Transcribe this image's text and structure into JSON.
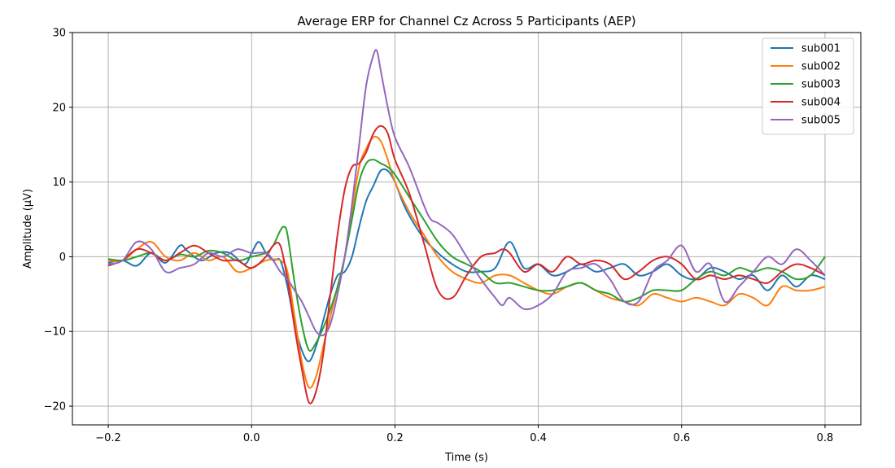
{
  "chart_data": {
    "type": "line",
    "title": "Average ERP for Channel Cz Across 5 Participants (AEP)",
    "xlabel": "Time (s)",
    "ylabel": "Amplitude (µV)",
    "xlim": [
      -0.25,
      0.85
    ],
    "ylim": [
      -22.5,
      30
    ],
    "xticks": [
      -0.2,
      0.0,
      0.2,
      0.4,
      0.6,
      0.8
    ],
    "xtick_labels": [
      "−0.2",
      "0.0",
      "0.2",
      "0.4",
      "0.6",
      "0.8"
    ],
    "yticks": [
      -20,
      -10,
      0,
      10,
      20,
      30
    ],
    "ytick_labels": [
      "−20",
      "−10",
      "0",
      "10",
      "20",
      "30"
    ],
    "grid": true,
    "legend_position": "top-right",
    "series": [
      {
        "name": "sub001",
        "color": "#1f77b4",
        "x": [
          -0.2,
          -0.18,
          -0.16,
          -0.14,
          -0.12,
          -0.1,
          -0.09,
          -0.07,
          -0.05,
          -0.03,
          -0.01,
          0.0,
          0.01,
          0.02,
          0.03,
          0.04,
          0.05,
          0.06,
          0.07,
          0.08,
          0.09,
          0.1,
          0.11,
          0.12,
          0.13,
          0.14,
          0.15,
          0.16,
          0.17,
          0.18,
          0.19,
          0.2,
          0.21,
          0.22,
          0.24,
          0.26,
          0.28,
          0.3,
          0.32,
          0.34,
          0.36,
          0.38,
          0.4,
          0.42,
          0.44,
          0.46,
          0.48,
          0.5,
          0.52,
          0.54,
          0.56,
          0.58,
          0.6,
          0.62,
          0.64,
          0.66,
          0.68,
          0.7,
          0.72,
          0.74,
          0.76,
          0.78,
          0.8
        ],
        "y": [
          -0.8,
          -0.5,
          -1.2,
          0.5,
          -0.8,
          1.5,
          0.8,
          -0.5,
          0.5,
          0.5,
          -1.0,
          0.5,
          2.0,
          0.5,
          -0.5,
          -0.5,
          -4.0,
          -9.0,
          -12.5,
          -14.0,
          -12.0,
          -8.5,
          -5.0,
          -2.5,
          -2.0,
          0.0,
          4.0,
          7.5,
          9.5,
          11.5,
          11.5,
          10.0,
          7.5,
          5.5,
          2.5,
          0.5,
          -1.0,
          -2.0,
          -2.0,
          -1.5,
          2.0,
          -1.5,
          -1.0,
          -2.5,
          -2.0,
          -1.0,
          -2.0,
          -1.5,
          -1.0,
          -2.5,
          -2.0,
          -1.0,
          -2.5,
          -3.0,
          -1.5,
          -2.0,
          -3.0,
          -2.5,
          -4.5,
          -2.5,
          -4.0,
          -2.5,
          -3.0
        ]
      },
      {
        "name": "sub002",
        "color": "#ff7f0e",
        "x": [
          -0.2,
          -0.18,
          -0.16,
          -0.14,
          -0.12,
          -0.1,
          -0.08,
          -0.06,
          -0.04,
          -0.02,
          0.0,
          0.02,
          0.04,
          0.05,
          0.06,
          0.07,
          0.08,
          0.09,
          0.1,
          0.11,
          0.12,
          0.13,
          0.14,
          0.15,
          0.16,
          0.17,
          0.18,
          0.19,
          0.2,
          0.22,
          0.24,
          0.26,
          0.28,
          0.3,
          0.32,
          0.34,
          0.36,
          0.38,
          0.4,
          0.42,
          0.44,
          0.46,
          0.48,
          0.5,
          0.52,
          0.54,
          0.56,
          0.58,
          0.6,
          0.62,
          0.64,
          0.66,
          0.68,
          0.7,
          0.72,
          0.74,
          0.76,
          0.78,
          0.8
        ],
        "y": [
          -0.5,
          -0.5,
          1.0,
          2.0,
          0.0,
          -0.5,
          0.5,
          -0.5,
          0.0,
          -2.0,
          -1.5,
          -0.5,
          -0.5,
          -2.0,
          -8.0,
          -14.0,
          -17.5,
          -16.0,
          -12.0,
          -8.0,
          -4.0,
          0.0,
          6.0,
          12.0,
          14.5,
          16.0,
          15.5,
          13.0,
          10.0,
          6.0,
          3.0,
          0.0,
          -2.0,
          -3.0,
          -3.5,
          -2.5,
          -2.5,
          -3.5,
          -4.5,
          -5.0,
          -4.0,
          -3.5,
          -4.5,
          -5.5,
          -6.0,
          -6.5,
          -5.0,
          -5.5,
          -6.0,
          -5.5,
          -6.0,
          -6.5,
          -5.0,
          -5.5,
          -6.5,
          -4.0,
          -4.5,
          -4.5,
          -4.0
        ]
      },
      {
        "name": "sub003",
        "color": "#2ca02c",
        "x": [
          -0.2,
          -0.18,
          -0.16,
          -0.14,
          -0.12,
          -0.1,
          -0.08,
          -0.06,
          -0.04,
          -0.02,
          0.0,
          0.02,
          0.03,
          0.04,
          0.045,
          0.05,
          0.06,
          0.07,
          0.08,
          0.09,
          0.1,
          0.11,
          0.12,
          0.13,
          0.14,
          0.15,
          0.16,
          0.17,
          0.18,
          0.19,
          0.2,
          0.22,
          0.24,
          0.26,
          0.28,
          0.3,
          0.32,
          0.34,
          0.36,
          0.38,
          0.4,
          0.42,
          0.44,
          0.46,
          0.48,
          0.5,
          0.52,
          0.54,
          0.56,
          0.58,
          0.6,
          0.62,
          0.64,
          0.66,
          0.68,
          0.7,
          0.72,
          0.74,
          0.76,
          0.78,
          0.8
        ],
        "y": [
          -0.3,
          -0.5,
          0.0,
          0.5,
          -0.5,
          0.3,
          0.0,
          0.8,
          0.5,
          -0.5,
          0.0,
          0.5,
          1.5,
          3.5,
          4.0,
          3.0,
          -3.5,
          -9.0,
          -12.5,
          -11.5,
          -9.5,
          -7.0,
          -4.0,
          0.0,
          5.0,
          10.0,
          12.5,
          13.0,
          12.5,
          12.0,
          11.0,
          8.0,
          5.0,
          2.0,
          0.0,
          -1.0,
          -2.0,
          -3.5,
          -3.5,
          -4.0,
          -4.5,
          -4.5,
          -4.0,
          -3.5,
          -4.5,
          -5.0,
          -6.0,
          -5.5,
          -4.5,
          -4.5,
          -4.5,
          -3.0,
          -2.0,
          -2.5,
          -1.5,
          -2.0,
          -1.5,
          -2.0,
          -3.0,
          -2.5,
          0.0
        ]
      },
      {
        "name": "sub004",
        "color": "#d62728",
        "x": [
          -0.2,
          -0.18,
          -0.16,
          -0.14,
          -0.12,
          -0.1,
          -0.08,
          -0.06,
          -0.04,
          -0.02,
          0.0,
          0.02,
          0.03,
          0.04,
          0.05,
          0.06,
          0.07,
          0.08,
          0.09,
          0.1,
          0.11,
          0.12,
          0.13,
          0.14,
          0.15,
          0.16,
          0.17,
          0.18,
          0.19,
          0.2,
          0.22,
          0.24,
          0.26,
          0.28,
          0.3,
          0.32,
          0.34,
          0.35,
          0.36,
          0.38,
          0.4,
          0.42,
          0.44,
          0.46,
          0.48,
          0.5,
          0.52,
          0.54,
          0.56,
          0.58,
          0.6,
          0.62,
          0.64,
          0.66,
          0.68,
          0.7,
          0.72,
          0.74,
          0.76,
          0.78,
          0.8
        ],
        "y": [
          -1.2,
          -0.5,
          1.0,
          0.5,
          -0.5,
          0.5,
          1.5,
          0.5,
          -0.5,
          -0.5,
          -1.5,
          0.0,
          1.5,
          1.5,
          -3.0,
          -9.5,
          -15.0,
          -19.5,
          -18.0,
          -13.0,
          -5.0,
          3.0,
          9.0,
          12.0,
          12.5,
          14.0,
          16.5,
          17.5,
          16.5,
          13.0,
          8.5,
          2.0,
          -4.5,
          -5.5,
          -2.5,
          0.0,
          0.5,
          1.0,
          0.5,
          -2.0,
          -1.0,
          -2.0,
          0.0,
          -1.0,
          -0.5,
          -1.0,
          -3.0,
          -2.0,
          -0.5,
          0.0,
          -1.0,
          -3.0,
          -2.5,
          -3.0,
          -2.5,
          -3.0,
          -3.5,
          -2.0,
          -1.0,
          -1.5,
          -2.5
        ]
      },
      {
        "name": "sub005",
        "color": "#9467bd",
        "x": [
          -0.2,
          -0.18,
          -0.16,
          -0.14,
          -0.12,
          -0.1,
          -0.08,
          -0.06,
          -0.04,
          -0.02,
          0.0,
          0.02,
          0.03,
          0.04,
          0.05,
          0.06,
          0.07,
          0.08,
          0.09,
          0.1,
          0.11,
          0.12,
          0.13,
          0.14,
          0.15,
          0.16,
          0.17,
          0.175,
          0.18,
          0.19,
          0.2,
          0.22,
          0.24,
          0.25,
          0.26,
          0.28,
          0.3,
          0.32,
          0.34,
          0.35,
          0.36,
          0.38,
          0.4,
          0.42,
          0.44,
          0.46,
          0.48,
          0.5,
          0.52,
          0.54,
          0.56,
          0.58,
          0.6,
          0.62,
          0.64,
          0.66,
          0.68,
          0.7,
          0.72,
          0.74,
          0.76,
          0.78,
          0.8
        ],
        "y": [
          -1.0,
          -0.5,
          2.0,
          1.0,
          -2.0,
          -1.5,
          -1.0,
          0.5,
          0.0,
          1.0,
          0.5,
          0.5,
          -0.5,
          -2.0,
          -3.0,
          -4.5,
          -6.0,
          -8.0,
          -10.0,
          -10.5,
          -9.0,
          -5.0,
          0.0,
          7.0,
          15.0,
          23.0,
          27.0,
          27.5,
          25.0,
          20.0,
          16.0,
          12.0,
          7.0,
          5.0,
          4.5,
          3.0,
          0.0,
          -3.0,
          -5.5,
          -6.5,
          -5.5,
          -7.0,
          -6.5,
          -5.0,
          -2.0,
          -1.5,
          -1.0,
          -3.0,
          -6.0,
          -6.0,
          -2.0,
          -0.5,
          1.5,
          -2.0,
          -1.0,
          -6.0,
          -4.0,
          -2.0,
          0.0,
          -1.0,
          1.0,
          -0.5,
          -2.5
        ]
      }
    ]
  }
}
